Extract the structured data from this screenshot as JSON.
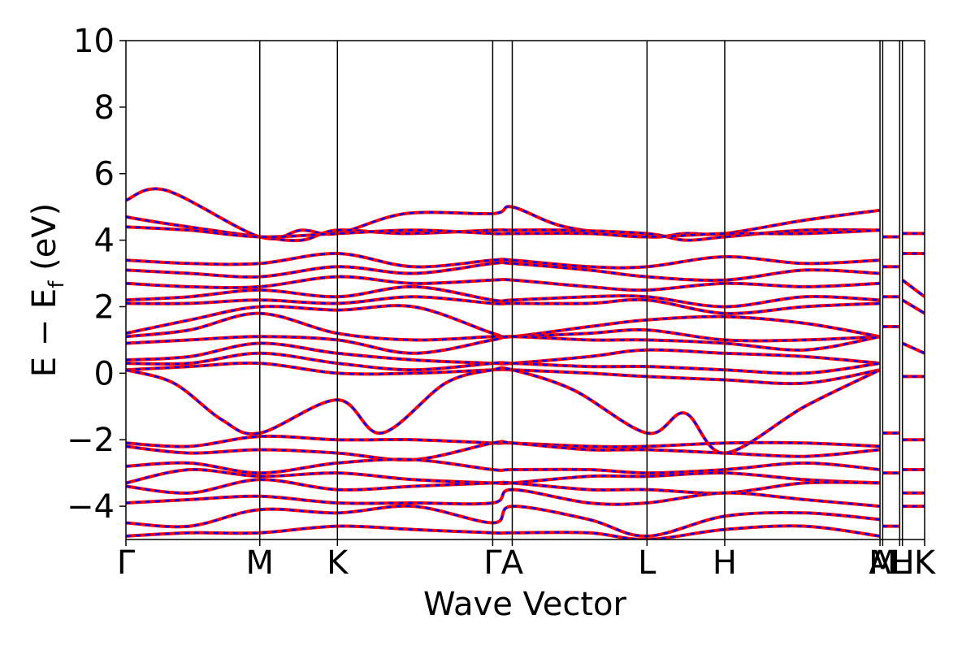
{
  "chart_data": {
    "type": "line",
    "title": "",
    "xlabel": "Wave Vector",
    "ylabel": "E − E_f (eV)",
    "ylabel_main": "E − E",
    "ylabel_sub": "f",
    "ylabel_unit": " (eV)",
    "ylim": [
      -5,
      10
    ],
    "yticks": [
      -4,
      -2,
      0,
      2,
      4,
      6,
      8,
      10
    ],
    "ytick_labels": [
      "−4",
      "−2",
      "0",
      "2",
      "4",
      "6",
      "8",
      "10"
    ],
    "grid": false,
    "kpoints": [
      {
        "label": "Γ",
        "x": 0.0
      },
      {
        "label": "M",
        "x": 0.1676
      },
      {
        "label": "K",
        "x": 0.2648
      },
      {
        "label": "Γ",
        "x": 0.4592
      },
      {
        "label": "A",
        "x": 0.4837
      },
      {
        "label": "L",
        "x": 0.6524
      },
      {
        "label": "H",
        "x": 0.7497
      },
      {
        "label": "A",
        "x": 0.9441
      },
      {
        "label": "M",
        "x": 0.9475
      },
      {
        "label": "L",
        "x": 0.9688
      },
      {
        "label": "H",
        "x": 0.9722
      },
      {
        "label": "K",
        "x": 1.0
      }
    ],
    "xlim": [
      0,
      1
    ],
    "colors": {
      "series_a": "#ff0000",
      "series_b": "#0000ff"
    },
    "bands": [
      {
        "x": [
          0,
          0.05,
          0.1676,
          0.22,
          0.2648,
          0.35,
          0.4592,
          0.4837,
          0.55,
          0.6524,
          0.7,
          0.7497,
          0.85,
          0.9441
        ],
        "y": [
          5.2,
          5.5,
          4.1,
          4.3,
          4.2,
          4.8,
          4.8,
          5.0,
          4.4,
          4.1,
          4.2,
          4.2,
          4.6,
          4.9
        ]
      },
      {
        "x": [
          0,
          0.05,
          0.1676,
          0.22,
          0.2648,
          0.35,
          0.4592,
          0.4837,
          0.55,
          0.6524,
          0.7,
          0.7497,
          0.85,
          0.9441
        ],
        "y": [
          4.7,
          4.5,
          4.1,
          4.0,
          4.3,
          4.2,
          4.3,
          4.3,
          4.3,
          4.2,
          4.0,
          4.1,
          4.3,
          4.3
        ]
      },
      {
        "x": [
          0,
          0.08,
          0.1676,
          0.2648,
          0.36,
          0.4592,
          0.4837,
          0.58,
          0.6524,
          0.7497,
          0.85,
          0.9441
        ],
        "y": [
          4.4,
          4.3,
          4.1,
          4.2,
          4.3,
          4.2,
          4.2,
          4.2,
          4.1,
          4.2,
          4.2,
          4.3
        ]
      },
      {
        "x": [
          0,
          0.08,
          0.1676,
          0.2648,
          0.36,
          0.4592,
          0.4837,
          0.58,
          0.6524,
          0.7497,
          0.85,
          0.9441
        ],
        "y": [
          3.4,
          3.3,
          3.3,
          3.6,
          3.2,
          3.4,
          3.4,
          3.2,
          3.2,
          3.5,
          3.3,
          3.4
        ]
      },
      {
        "x": [
          0,
          0.08,
          0.1676,
          0.2648,
          0.36,
          0.4592,
          0.4837,
          0.58,
          0.6524,
          0.7497,
          0.85,
          0.9441
        ],
        "y": [
          3.1,
          3.0,
          2.9,
          3.2,
          3.0,
          3.3,
          3.3,
          3.1,
          2.9,
          2.8,
          3.1,
          3.0
        ]
      },
      {
        "x": [
          0,
          0.08,
          0.1676,
          0.2648,
          0.36,
          0.4592,
          0.4837,
          0.58,
          0.6524,
          0.7497,
          0.85,
          0.9441
        ],
        "y": [
          2.7,
          2.6,
          2.6,
          2.9,
          2.7,
          2.8,
          2.8,
          2.6,
          2.5,
          2.7,
          2.6,
          2.7
        ]
      },
      {
        "x": [
          0,
          0.08,
          0.1676,
          0.2648,
          0.36,
          0.4592,
          0.4837,
          0.58,
          0.6524,
          0.7497,
          0.85,
          0.9441
        ],
        "y": [
          2.2,
          2.3,
          2.5,
          2.3,
          2.6,
          2.2,
          2.2,
          2.3,
          2.3,
          2.0,
          2.3,
          2.2
        ]
      },
      {
        "x": [
          0,
          0.08,
          0.1676,
          0.2648,
          0.36,
          0.4592,
          0.4837,
          0.58,
          0.6524,
          0.7497,
          0.85,
          0.9441
        ],
        "y": [
          2.1,
          2.1,
          2.2,
          2.1,
          2.3,
          2.1,
          2.1,
          2.1,
          2.2,
          1.8,
          2.0,
          2.1
        ]
      },
      {
        "x": [
          0,
          0.08,
          0.1676,
          0.2648,
          0.36,
          0.4592,
          0.4837,
          0.58,
          0.6524,
          0.7497,
          0.85,
          0.9441
        ],
        "y": [
          1.2,
          1.6,
          2.0,
          1.9,
          2.0,
          1.2,
          1.1,
          1.4,
          1.6,
          1.7,
          1.5,
          1.1
        ]
      },
      {
        "x": [
          0,
          0.08,
          0.1676,
          0.2648,
          0.36,
          0.4592,
          0.4837,
          0.58,
          0.6524,
          0.7497,
          0.85,
          0.9441
        ],
        "y": [
          1.1,
          1.3,
          1.8,
          1.2,
          1.0,
          1.1,
          1.1,
          1.2,
          1.3,
          1.0,
          1.0,
          1.1
        ]
      },
      {
        "x": [
          0,
          0.08,
          0.1676,
          0.2648,
          0.36,
          0.4592,
          0.4837,
          0.58,
          0.6524,
          0.7497,
          0.85,
          0.9441
        ],
        "y": [
          0.9,
          1.0,
          1.1,
          1.0,
          0.6,
          1.0,
          1.1,
          1.0,
          1.0,
          0.9,
          0.7,
          1.1
        ]
      },
      {
        "x": [
          0,
          0.08,
          0.1676,
          0.2648,
          0.36,
          0.4592,
          0.4837,
          0.58,
          0.6524,
          0.7497,
          0.85,
          0.9441
        ],
        "y": [
          0.4,
          0.5,
          0.9,
          0.6,
          0.4,
          0.3,
          0.3,
          0.5,
          0.7,
          0.6,
          0.5,
          0.3
        ]
      },
      {
        "x": [
          0,
          0.08,
          0.1676,
          0.2648,
          0.36,
          0.4592,
          0.4837,
          0.58,
          0.6524,
          0.7497,
          0.85,
          0.9441
        ],
        "y": [
          0.3,
          0.3,
          0.6,
          0.3,
          0.1,
          0.3,
          0.3,
          0.2,
          0.2,
          0.1,
          0.0,
          0.3
        ]
      },
      {
        "x": [
          0,
          0.08,
          0.1676,
          0.2648,
          0.36,
          0.4592,
          0.4837,
          0.58,
          0.6524,
          0.7497,
          0.85,
          0.9441
        ],
        "y": [
          0.1,
          0.2,
          0.3,
          0.0,
          0.0,
          0.1,
          0.1,
          0.0,
          -0.1,
          -0.2,
          -0.3,
          0.1
        ]
      },
      {
        "x": [
          0,
          0.06,
          0.12,
          0.1676,
          0.2648,
          0.32,
          0.4,
          0.4592,
          0.4837,
          0.56,
          0.6524,
          0.7,
          0.7497,
          0.85,
          0.9441
        ],
        "y": [
          0.1,
          -0.3,
          -1.4,
          -1.8,
          -0.8,
          -1.8,
          -0.3,
          0.1,
          0.1,
          -0.5,
          -1.8,
          -1.2,
          -2.4,
          -1.0,
          0.1
        ]
      },
      {
        "x": [
          0,
          0.08,
          0.1676,
          0.2648,
          0.36,
          0.4592,
          0.4837,
          0.58,
          0.6524,
          0.7497,
          0.85,
          0.9441
        ],
        "y": [
          -2.1,
          -2.2,
          -1.9,
          -2.0,
          -2.0,
          -2.1,
          -2.1,
          -2.2,
          -2.2,
          -2.1,
          -2.1,
          -2.2
        ]
      },
      {
        "x": [
          0,
          0.08,
          0.1676,
          0.2648,
          0.36,
          0.4592,
          0.4837,
          0.58,
          0.6524,
          0.7497,
          0.85,
          0.9441
        ],
        "y": [
          -2.2,
          -2.4,
          -2.3,
          -2.4,
          -2.6,
          -2.1,
          -2.1,
          -2.3,
          -2.3,
          -2.4,
          -2.5,
          -2.3
        ]
      },
      {
        "x": [
          0,
          0.08,
          0.1676,
          0.2648,
          0.36,
          0.4592,
          0.4837,
          0.58,
          0.6524,
          0.7497,
          0.85,
          0.9441
        ],
        "y": [
          -2.8,
          -2.7,
          -3.0,
          -2.7,
          -2.6,
          -2.9,
          -2.9,
          -2.9,
          -3.0,
          -2.9,
          -2.7,
          -2.9
        ]
      },
      {
        "x": [
          0,
          0.08,
          0.1676,
          0.2648,
          0.36,
          0.4592,
          0.4837,
          0.58,
          0.6524,
          0.7497,
          0.85,
          0.9441
        ],
        "y": [
          -3.3,
          -2.9,
          -3.1,
          -3.0,
          -3.2,
          -3.3,
          -3.3,
          -3.1,
          -3.1,
          -3.0,
          -3.2,
          -3.3
        ]
      },
      {
        "x": [
          0,
          0.08,
          0.1676,
          0.2648,
          0.36,
          0.4592,
          0.4837,
          0.58,
          0.6524,
          0.7497,
          0.85,
          0.9441
        ],
        "y": [
          -3.4,
          -3.6,
          -3.2,
          -3.5,
          -3.4,
          -3.3,
          -3.3,
          -3.5,
          -3.5,
          -3.6,
          -3.3,
          -3.3
        ]
      },
      {
        "x": [
          0,
          0.08,
          0.1676,
          0.2648,
          0.36,
          0.4592,
          0.4837,
          0.58,
          0.6524,
          0.7497,
          0.85,
          0.9441
        ],
        "y": [
          -3.9,
          -3.8,
          -3.7,
          -3.9,
          -3.9,
          -3.9,
          -3.5,
          -3.9,
          -3.9,
          -3.6,
          -3.8,
          -4.0
        ]
      },
      {
        "x": [
          0,
          0.08,
          0.1676,
          0.2648,
          0.36,
          0.4592,
          0.4837,
          0.58,
          0.6524,
          0.7497,
          0.85,
          0.9441
        ],
        "y": [
          -4.5,
          -4.6,
          -4.1,
          -4.2,
          -4.0,
          -4.5,
          -4.0,
          -4.4,
          -4.9,
          -4.3,
          -4.2,
          -4.4
        ]
      },
      {
        "x": [
          0,
          0.08,
          0.1676,
          0.2648,
          0.36,
          0.4592,
          0.4837,
          0.58,
          0.6524,
          0.7497,
          0.85,
          0.9441
        ],
        "y": [
          -4.9,
          -4.8,
          -4.8,
          -4.6,
          -4.7,
          -4.8,
          -4.8,
          -4.8,
          -5.0,
          -4.7,
          -4.6,
          -4.9
        ]
      },
      {
        "x": [
          0.9722,
          1.0
        ],
        "y": [
          4.2,
          4.2
        ]
      },
      {
        "x": [
          0.9722,
          1.0
        ],
        "y": [
          3.6,
          3.6
        ]
      },
      {
        "x": [
          0.9722,
          1.0
        ],
        "y": [
          2.8,
          2.3
        ]
      },
      {
        "x": [
          0.9722,
          1.0
        ],
        "y": [
          2.2,
          1.8
        ]
      },
      {
        "x": [
          0.9722,
          1.0
        ],
        "y": [
          0.9,
          0.6
        ]
      },
      {
        "x": [
          0.9722,
          1.0
        ],
        "y": [
          -0.1,
          -0.1
        ]
      },
      {
        "x": [
          0.9722,
          1.0
        ],
        "y": [
          -2.0,
          -2.0
        ]
      },
      {
        "x": [
          0.9722,
          1.0
        ],
        "y": [
          -2.9,
          -2.9
        ]
      },
      {
        "x": [
          0.9722,
          1.0
        ],
        "y": [
          -3.6,
          -3.6
        ]
      },
      {
        "x": [
          0.9722,
          1.0
        ],
        "y": [
          -4.0,
          -4.0
        ]
      },
      {
        "x": [
          0.9475,
          0.9688
        ],
        "y": [
          4.1,
          4.1
        ]
      },
      {
        "x": [
          0.9475,
          0.9688
        ],
        "y": [
          3.2,
          3.2
        ]
      },
      {
        "x": [
          0.9475,
          0.9688
        ],
        "y": [
          2.3,
          2.3
        ]
      },
      {
        "x": [
          0.9475,
          0.9688
        ],
        "y": [
          1.4,
          1.4
        ]
      },
      {
        "x": [
          0.9475,
          0.9688
        ],
        "y": [
          -1.8,
          -1.8
        ]
      },
      {
        "x": [
          0.9475,
          0.9688
        ],
        "y": [
          -3.0,
          -3.0
        ]
      },
      {
        "x": [
          0.9475,
          0.9688
        ],
        "y": [
          -4.6,
          -4.6
        ]
      }
    ]
  }
}
